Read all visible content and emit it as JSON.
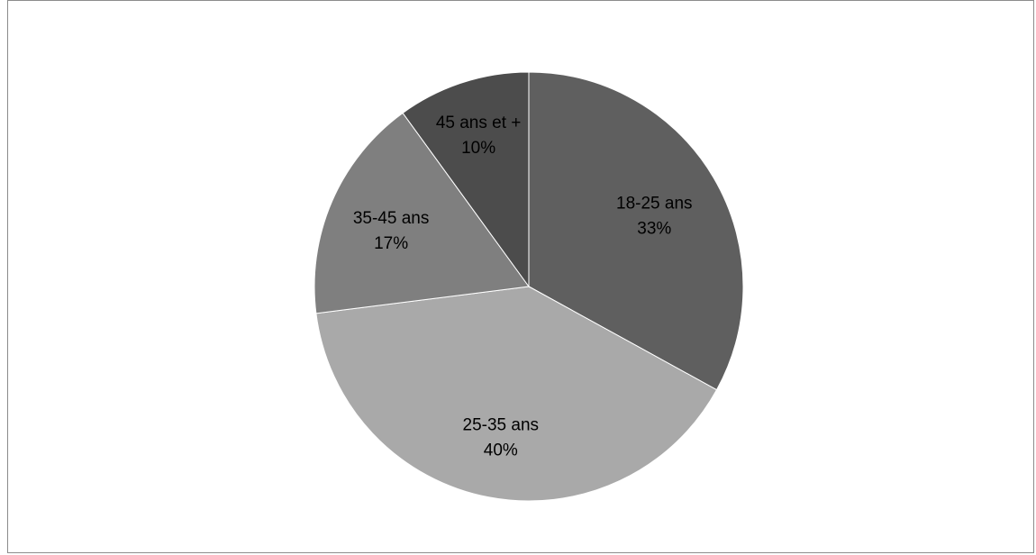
{
  "chart_data": {
    "type": "pie",
    "title": "",
    "start_angle_deg": 0,
    "direction": "clockwise",
    "slices": [
      {
        "label": "18-25 ans",
        "value": 33,
        "value_label": "33%",
        "color": "#5f5f5f"
      },
      {
        "label": "25-35 ans",
        "value": 40,
        "value_label": "40%",
        "color": "#a9a9a9"
      },
      {
        "label": "35-45 ans",
        "value": 17,
        "value_label": "17%",
        "color": "#7f7f7f"
      },
      {
        "label": "45 ans et +",
        "value": 10,
        "value_label": "10%",
        "color": "#4c4c4c"
      }
    ],
    "legend": "none",
    "data_labels": "inside"
  }
}
